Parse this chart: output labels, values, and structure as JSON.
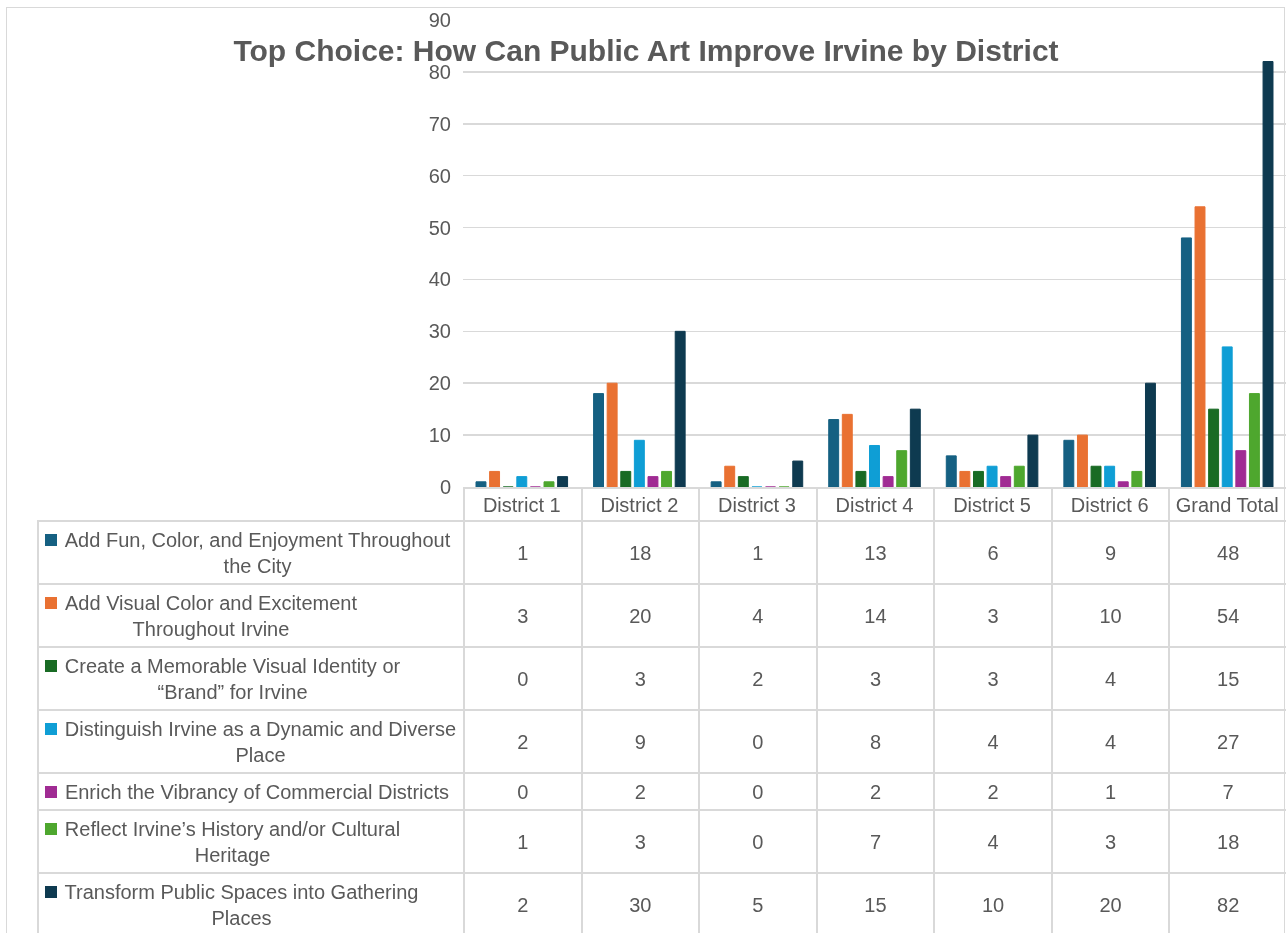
{
  "chart_data": {
    "type": "bar",
    "title": "Top Choice: How Can Public Art Improve Irvine by District",
    "categories": [
      "District 1",
      "District 2",
      "District 3",
      "District 4",
      "District 5",
      "District 6",
      "Grand Total"
    ],
    "series": [
      {
        "name": "Add Fun, Color, and Enjoyment Throughout the City",
        "color": "#156082",
        "values": [
          1,
          18,
          1,
          13,
          6,
          9,
          48
        ]
      },
      {
        "name": "Add Visual Color and Excitement Throughout Irvine",
        "color": "#e97132",
        "values": [
          3,
          20,
          4,
          14,
          3,
          10,
          54
        ]
      },
      {
        "name": "Create a Memorable Visual Identity or “Brand” for Irvine",
        "color": "#196b24",
        "values": [
          0,
          3,
          2,
          3,
          3,
          4,
          15
        ]
      },
      {
        "name": "Distinguish Irvine as a Dynamic and Diverse Place",
        "color": "#0f9ed5",
        "values": [
          2,
          9,
          0,
          8,
          4,
          4,
          27
        ]
      },
      {
        "name": "Enrich the Vibrancy of Commercial Districts",
        "color": "#a02b93",
        "values": [
          0,
          2,
          0,
          2,
          2,
          1,
          7
        ]
      },
      {
        "name": "Reflect Irvine’s History and/or Cultural Heritage",
        "color": "#4ea72e",
        "values": [
          1,
          3,
          0,
          7,
          4,
          3,
          18
        ]
      },
      {
        "name": "Transform Public Spaces into Gathering Places",
        "color": "#0e3a50",
        "values": [
          2,
          30,
          5,
          15,
          10,
          20,
          82
        ]
      }
    ],
    "ylim": [
      0,
      90
    ],
    "yticks": [
      0,
      10,
      20,
      30,
      40,
      50,
      60,
      70,
      80,
      90
    ],
    "grid": "y",
    "legend": "bottom",
    "data_labels": true
  }
}
